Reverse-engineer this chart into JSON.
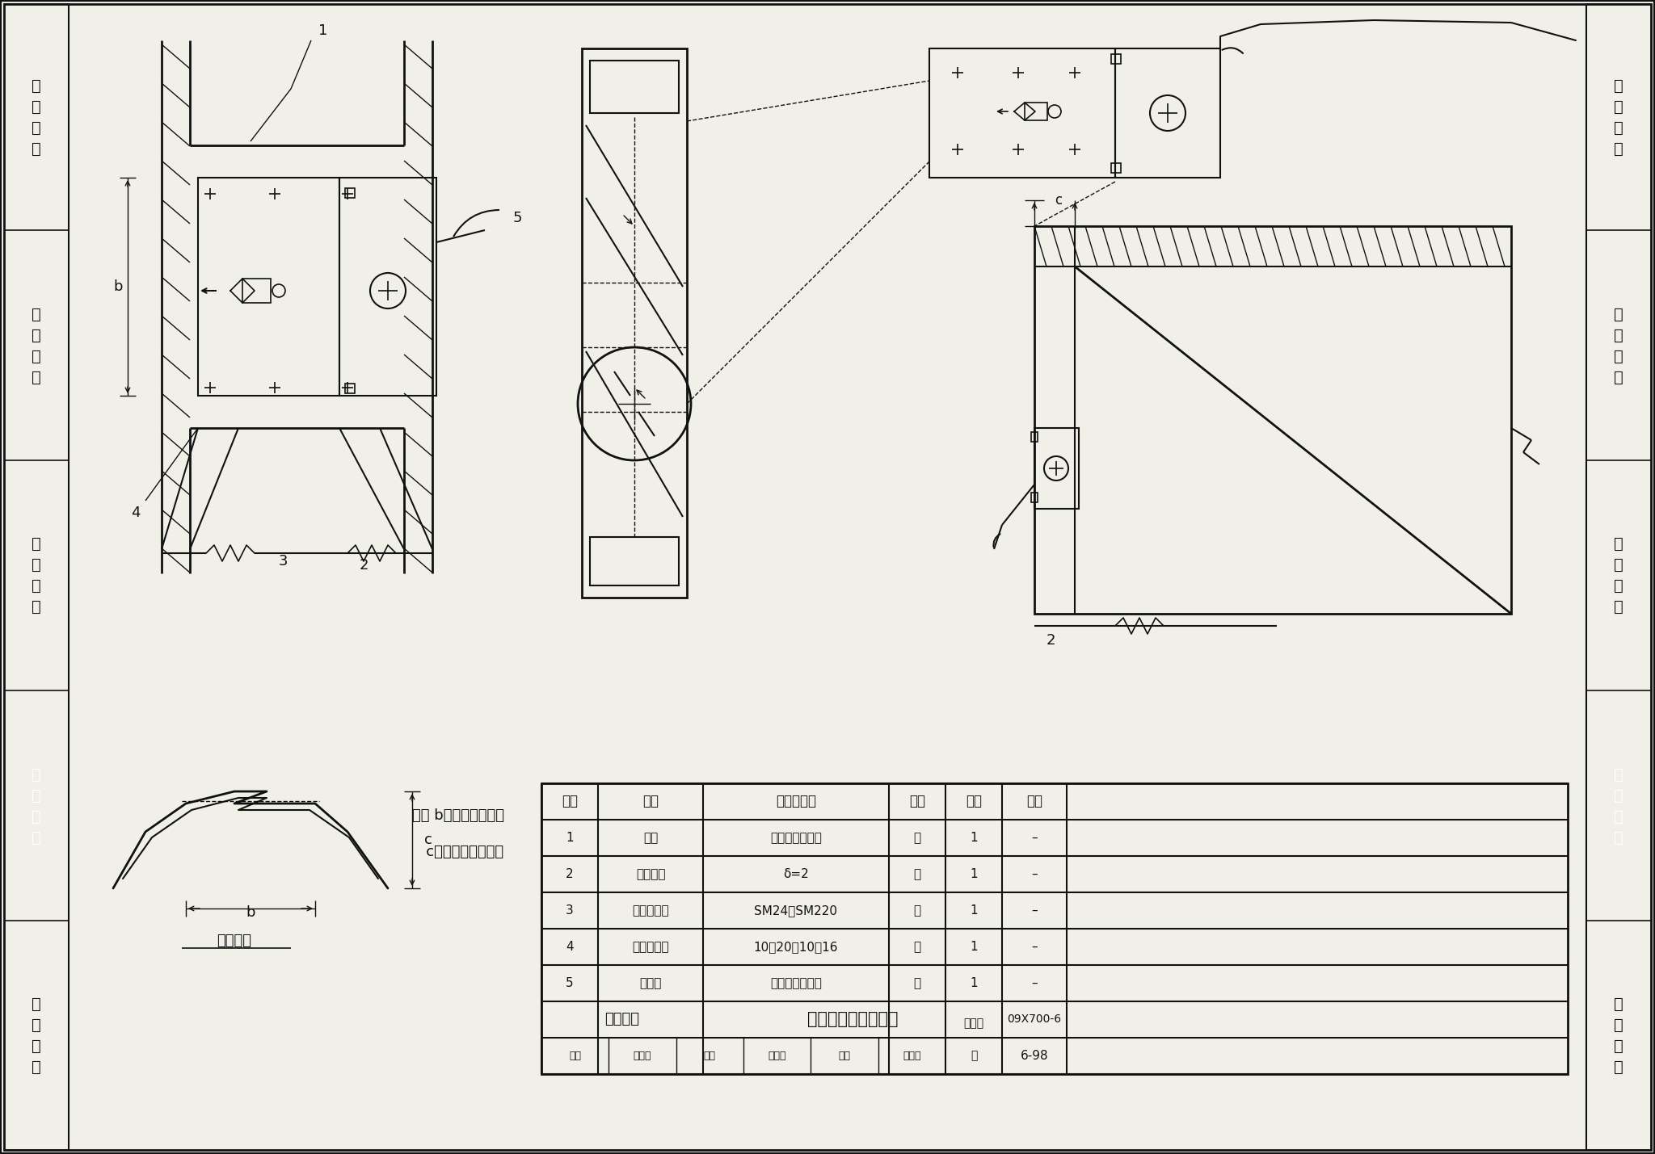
{
  "page_bg": "#f0efe8",
  "line_color": "#111111",
  "gray_bg": "#888888",
  "left_sidebar": [
    "机房工程",
    "供电电源",
    "缆线敏设",
    "设备安装",
    "防雷接地"
  ],
  "table_headers": [
    "编号",
    "名称",
    "型号及规格",
    "单位",
    "数量",
    "备注"
  ],
  "table_rows": [
    [
      "1",
      "风阀",
      "由工程设计确定",
      "套",
      "1",
      "–"
    ],
    [
      "2",
      "固定支架",
      "δ=2",
      "个",
      "1",
      "–"
    ],
    [
      "3",
      "风阀执行器",
      "SM24、SM220",
      "套",
      "1",
      "–"
    ],
    [
      "4",
      "风阀驱动轴",
      "10～20、10～16",
      "个",
      "1",
      "–"
    ],
    [
      "5",
      "控制线",
      "由工程设计确定",
      "根",
      "1",
      "–"
    ]
  ],
  "bottom_left": "设备安装",
  "bottom_title": "旋转风门执行器安装",
  "bottom_right_label": "图集号",
  "bottom_right_value": "09X700-6",
  "page_label": "页",
  "page_number": "6-98",
  "guding_label": "固定支架",
  "note_line1": "注： b为执行器宽度；",
  "note_line2": "   c为风门凸缘深度。",
  "sig_row": [
    "审核",
    "李雪偃",
    "校对",
    "宏宙同",
    "设计",
    "董国民"
  ]
}
